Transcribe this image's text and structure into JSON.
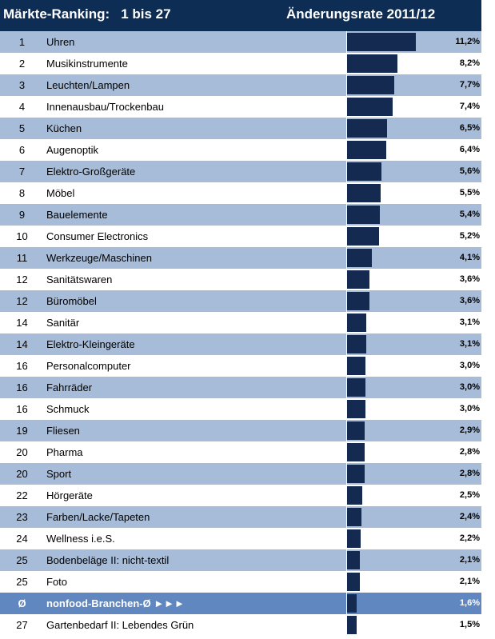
{
  "header": {
    "title": "Märkte-Ranking:",
    "range": "1 bis 27",
    "value_title": "Änderungsrate 2011/12"
  },
  "colors": {
    "header_bg": "#0d2d55",
    "shaded_row": "#a6bcd9",
    "average_row": "#6187c0",
    "bar": "#142a50"
  },
  "chart_data": {
    "type": "bar",
    "orientation": "horizontal",
    "title": "Märkte-Ranking: 1 bis 27",
    "value_label": "Änderungsrate 2011/12",
    "unit": "%",
    "xlim": [
      0,
      11.2
    ],
    "rows": [
      {
        "rank": "1",
        "label": "Uhren",
        "value": 11.2,
        "text": "11,2%"
      },
      {
        "rank": "2",
        "label": "Musikinstrumente",
        "value": 8.2,
        "text": "8,2%"
      },
      {
        "rank": "3",
        "label": "Leuchten/Lampen",
        "value": 7.7,
        "text": "7,7%"
      },
      {
        "rank": "4",
        "label": "Innenausbau/Trockenbau",
        "value": 7.4,
        "text": "7,4%"
      },
      {
        "rank": "5",
        "label": "Küchen",
        "value": 6.5,
        "text": "6,5%"
      },
      {
        "rank": "6",
        "label": "Augenoptik",
        "value": 6.4,
        "text": "6,4%"
      },
      {
        "rank": "7",
        "label": "Elektro-Großgeräte",
        "value": 5.6,
        "text": "5,6%"
      },
      {
        "rank": "8",
        "label": "Möbel",
        "value": 5.5,
        "text": "5,5%"
      },
      {
        "rank": "9",
        "label": "Bauelemente",
        "value": 5.4,
        "text": "5,4%"
      },
      {
        "rank": "10",
        "label": "Consumer Electronics",
        "value": 5.2,
        "text": "5,2%"
      },
      {
        "rank": "11",
        "label": "Werkzeuge/Maschinen",
        "value": 4.1,
        "text": "4,1%"
      },
      {
        "rank": "12",
        "label": "Sanitätswaren",
        "value": 3.6,
        "text": "3,6%"
      },
      {
        "rank": "12",
        "label": "Büromöbel",
        "value": 3.6,
        "text": "3,6%"
      },
      {
        "rank": "14",
        "label": "Sanitär",
        "value": 3.1,
        "text": "3,1%"
      },
      {
        "rank": "14",
        "label": "Elektro-Kleingeräte",
        "value": 3.1,
        "text": "3,1%"
      },
      {
        "rank": "16",
        "label": "Personalcomputer",
        "value": 3.0,
        "text": "3,0%"
      },
      {
        "rank": "16",
        "label": "Fahrräder",
        "value": 3.0,
        "text": "3,0%"
      },
      {
        "rank": "16",
        "label": "Schmuck",
        "value": 3.0,
        "text": "3,0%"
      },
      {
        "rank": "19",
        "label": "Fliesen",
        "value": 2.9,
        "text": "2,9%"
      },
      {
        "rank": "20",
        "label": "Pharma",
        "value": 2.8,
        "text": "2,8%"
      },
      {
        "rank": "20",
        "label": "Sport",
        "value": 2.8,
        "text": "2,8%"
      },
      {
        "rank": "22",
        "label": "Hörgeräte",
        "value": 2.5,
        "text": "2,5%"
      },
      {
        "rank": "23",
        "label": "Farben/Lacke/Tapeten",
        "value": 2.4,
        "text": "2,4%"
      },
      {
        "rank": "24",
        "label": "Wellness i.e.S.",
        "value": 2.2,
        "text": "2,2%"
      },
      {
        "rank": "25",
        "label": "Bodenbeläge II: nicht-textil",
        "value": 2.1,
        "text": "2,1%"
      },
      {
        "rank": "25",
        "label": "Foto",
        "value": 2.1,
        "text": "2,1%"
      },
      {
        "rank": "Ø",
        "label": "nonfood-Branchen-Ø ►►►",
        "value": 1.6,
        "text": "1,6%",
        "average": true
      },
      {
        "rank": "27",
        "label": "Gartenbedarf II: Lebendes Grün",
        "value": 1.5,
        "text": "1,5%"
      }
    ]
  }
}
